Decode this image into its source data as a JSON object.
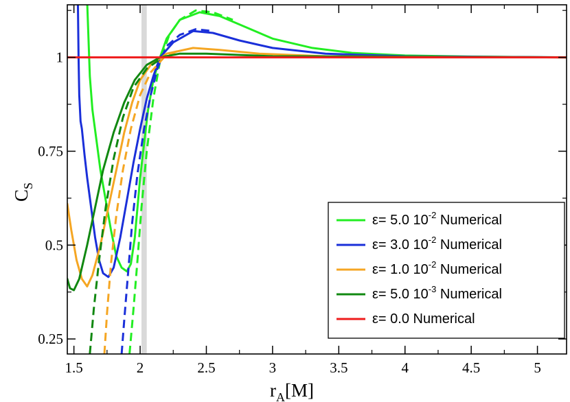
{
  "chart_data": {
    "type": "line",
    "title": "",
    "xlabel": {
      "main": "r",
      "sub": "A",
      "unit": "[M]"
    },
    "ylabel": {
      "main": "C",
      "sub": "S"
    },
    "xlim": [
      1.45,
      5.22
    ],
    "ylim": [
      0.21,
      1.14
    ],
    "xticks": [
      {
        "value": 1.5,
        "label": "1.5"
      },
      {
        "value": 2,
        "label": "2"
      },
      {
        "value": 2.5,
        "label": "2.5"
      },
      {
        "value": 3,
        "label": "3"
      },
      {
        "value": 3.5,
        "label": "3.5"
      },
      {
        "value": 4,
        "label": "4"
      },
      {
        "value": 4.5,
        "label": "4.5"
      },
      {
        "value": 5,
        "label": "5"
      }
    ],
    "yticks": [
      {
        "value": 0.25,
        "label": "0.25"
      },
      {
        "value": 0.5,
        "label": "0.5"
      },
      {
        "value": 0.75,
        "label": "0.75"
      },
      {
        "value": 1,
        "label": "1"
      }
    ],
    "shaded_band": {
      "x": [
        2.01,
        2.05
      ],
      "color": "#d9d9d9"
    },
    "legend_position": "lower-right",
    "series": [
      {
        "name": "ε= 5.0 10⁻² Numerical",
        "legend": {
          "eps": "ε= 5.0 10",
          "exp": "-2",
          "label": "Numerical"
        },
        "color": "#22ee22",
        "solid": [
          [
            1.6,
            1.15
          ],
          [
            1.62,
            0.95
          ],
          [
            1.64,
            0.86
          ],
          [
            1.67,
            0.78
          ],
          [
            1.7,
            0.7
          ],
          [
            1.74,
            0.62
          ],
          [
            1.78,
            0.54
          ],
          [
            1.82,
            0.47
          ],
          [
            1.86,
            0.44
          ],
          [
            1.9,
            0.43
          ],
          [
            1.93,
            0.45
          ],
          [
            1.96,
            0.52
          ],
          [
            1.98,
            0.6
          ],
          [
            2.0,
            0.68
          ],
          [
            2.03,
            0.77
          ],
          [
            2.06,
            0.86
          ],
          [
            2.1,
            0.94
          ],
          [
            2.15,
            1.0
          ],
          [
            2.2,
            1.05
          ],
          [
            2.3,
            1.1
          ],
          [
            2.45,
            1.12
          ],
          [
            2.6,
            1.11
          ],
          [
            2.8,
            1.08
          ],
          [
            3.0,
            1.05
          ],
          [
            3.3,
            1.025
          ],
          [
            3.6,
            1.012
          ],
          [
            4.0,
            1.005
          ],
          [
            4.5,
            1.002
          ],
          [
            5.22,
            1.0
          ]
        ],
        "dashed": [
          [
            1.92,
            0.21
          ],
          [
            1.95,
            0.33
          ],
          [
            1.98,
            0.46
          ],
          [
            2.01,
            0.6
          ],
          [
            2.05,
            0.75
          ],
          [
            2.1,
            0.89
          ],
          [
            2.15,
            0.99
          ],
          [
            2.22,
            1.06
          ],
          [
            2.3,
            1.1
          ],
          [
            2.42,
            1.125
          ],
          [
            2.55,
            1.12
          ],
          [
            2.7,
            1.1
          ]
        ]
      },
      {
        "name": "ε= 3.0 10⁻² Numerical",
        "legend": {
          "eps": "ε= 3.0 10",
          "exp": "-2",
          "label": "Numerical"
        },
        "color": "#1a2fd9",
        "solid": [
          [
            1.53,
            1.15
          ],
          [
            1.535,
            1.0
          ],
          [
            1.54,
            0.9
          ],
          [
            1.55,
            0.83
          ],
          [
            1.56,
            0.81
          ],
          [
            1.58,
            0.74
          ],
          [
            1.6,
            0.68
          ],
          [
            1.63,
            0.6
          ],
          [
            1.66,
            0.52
          ],
          [
            1.69,
            0.46
          ],
          [
            1.72,
            0.425
          ],
          [
            1.76,
            0.415
          ],
          [
            1.8,
            0.44
          ],
          [
            1.85,
            0.52
          ],
          [
            1.9,
            0.62
          ],
          [
            1.95,
            0.72
          ],
          [
            2.0,
            0.81
          ],
          [
            2.05,
            0.89
          ],
          [
            2.1,
            0.95
          ],
          [
            2.15,
            1.0
          ],
          [
            2.25,
            1.04
          ],
          [
            2.4,
            1.07
          ],
          [
            2.55,
            1.065
          ],
          [
            2.75,
            1.045
          ],
          [
            3.0,
            1.025
          ],
          [
            3.4,
            1.01
          ],
          [
            4.0,
            1.003
          ],
          [
            5.22,
            1.0
          ]
        ],
        "dashed": [
          [
            1.86,
            0.21
          ],
          [
            1.88,
            0.3
          ],
          [
            1.91,
            0.43
          ],
          [
            1.94,
            0.56
          ],
          [
            1.98,
            0.69
          ],
          [
            2.03,
            0.81
          ],
          [
            2.08,
            0.9
          ],
          [
            2.13,
            0.97
          ],
          [
            2.2,
            1.03
          ],
          [
            2.3,
            1.06
          ],
          [
            2.42,
            1.075
          ],
          [
            2.55,
            1.07
          ]
        ]
      },
      {
        "name": "ε= 1.0 10⁻² Numerical",
        "legend": {
          "eps": "ε= 1.0 10",
          "exp": "-2",
          "label": "Numerical"
        },
        "color": "#f5a623",
        "solid": [
          [
            1.45,
            0.61
          ],
          [
            1.48,
            0.54
          ],
          [
            1.52,
            0.46
          ],
          [
            1.56,
            0.41
          ],
          [
            1.6,
            0.39
          ],
          [
            1.64,
            0.42
          ],
          [
            1.7,
            0.5
          ],
          [
            1.76,
            0.6
          ],
          [
            1.82,
            0.7
          ],
          [
            1.88,
            0.8
          ],
          [
            1.94,
            0.88
          ],
          [
            2.0,
            0.94
          ],
          [
            2.08,
            0.98
          ],
          [
            2.2,
            1.01
          ],
          [
            2.4,
            1.025
          ],
          [
            2.6,
            1.02
          ],
          [
            2.9,
            1.01
          ],
          [
            3.4,
            1.003
          ],
          [
            5.22,
            1.0
          ]
        ],
        "dashed": [
          [
            1.73,
            0.21
          ],
          [
            1.75,
            0.32
          ],
          [
            1.78,
            0.45
          ],
          [
            1.82,
            0.58
          ],
          [
            1.87,
            0.7
          ],
          [
            1.93,
            0.81
          ],
          [
            2.0,
            0.9
          ],
          [
            2.08,
            0.96
          ],
          [
            2.18,
            1.0
          ],
          [
            2.3,
            1.02
          ]
        ]
      },
      {
        "name": "ε= 5.0 10⁻³ Numerical",
        "legend": {
          "eps": "ε= 5.0 10",
          "exp": "-3",
          "label": "Numerical"
        },
        "color": "#118811",
        "solid": [
          [
            1.45,
            0.41
          ],
          [
            1.47,
            0.385
          ],
          [
            1.5,
            0.38
          ],
          [
            1.54,
            0.41
          ],
          [
            1.6,
            0.5
          ],
          [
            1.66,
            0.6
          ],
          [
            1.72,
            0.7
          ],
          [
            1.8,
            0.8
          ],
          [
            1.88,
            0.88
          ],
          [
            1.96,
            0.94
          ],
          [
            2.05,
            0.98
          ],
          [
            2.15,
            1.0
          ],
          [
            2.3,
            1.01
          ],
          [
            2.5,
            1.01
          ],
          [
            3.0,
            1.003
          ],
          [
            5.22,
            1.0
          ]
        ],
        "dashed": [
          [
            1.62,
            0.21
          ],
          [
            1.65,
            0.33
          ],
          [
            1.69,
            0.46
          ],
          [
            1.74,
            0.6
          ],
          [
            1.8,
            0.73
          ],
          [
            1.87,
            0.84
          ],
          [
            1.95,
            0.92
          ],
          [
            2.05,
            0.97
          ],
          [
            2.15,
            0.995
          ]
        ]
      },
      {
        "name": "ε= 0.0 Numerical",
        "legend": {
          "eps": "ε= 0.0",
          "exp": "",
          "label": "Numerical"
        },
        "color": "#ee1c1c",
        "solid": [
          [
            1.45,
            1.0
          ],
          [
            5.22,
            1.0
          ]
        ],
        "dashed": []
      }
    ]
  }
}
